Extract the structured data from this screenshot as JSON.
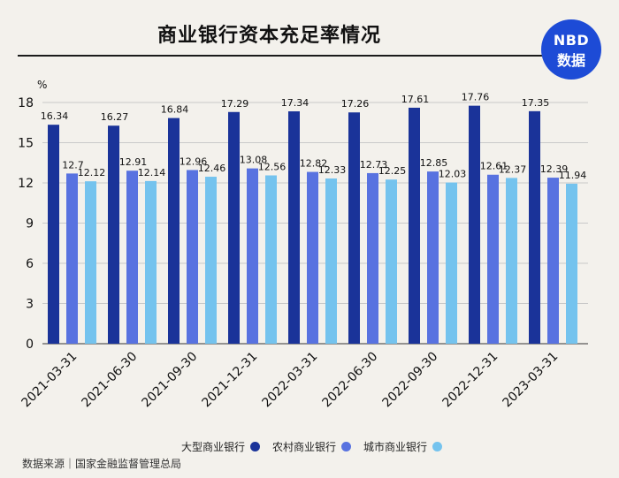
{
  "header": {
    "title": "商业银行资本充足率情况"
  },
  "logo": {
    "line1": "NBD",
    "line2": "数据"
  },
  "source": "数据来源｜国家金融监督管理总局",
  "chart_data": {
    "type": "bar",
    "title": "商业银行资本充足率情况",
    "unit_label": "%",
    "categories": [
      "2021-03-31",
      "2021-06-30",
      "2021-09-30",
      "2021-12-31",
      "2022-03-31",
      "2022-06-30",
      "2022-09-30",
      "2022-12-31",
      "2023-03-31"
    ],
    "series": [
      {
        "name": "大型商业银行",
        "color": "#1a3399",
        "values": [
          16.34,
          16.27,
          16.84,
          17.29,
          17.34,
          17.26,
          17.61,
          17.76,
          17.35
        ]
      },
      {
        "name": "农村商业银行",
        "color": "#5872e0",
        "values": [
          12.7,
          12.91,
          12.96,
          13.08,
          12.82,
          12.73,
          12.85,
          12.61,
          12.39
        ]
      },
      {
        "name": "城市商业银行",
        "color": "#74c3ee",
        "values": [
          12.12,
          12.14,
          12.46,
          12.56,
          12.33,
          12.25,
          12.03,
          12.37,
          11.94
        ]
      }
    ],
    "data_labels": [
      [
        "16.34",
        "16.27",
        "16.84",
        "17.29",
        "17.34",
        "17.26",
        "17.61",
        "17.76",
        "17.35"
      ],
      [
        "12.7",
        "12.91",
        "12.96",
        "13.08",
        "12.82",
        "12.73",
        "12.85",
        "12.61",
        "12.39"
      ],
      [
        "12.12",
        "12.14",
        "12.46",
        "12.56",
        "12.33",
        "12.25",
        "12.03",
        "12.37",
        "11.94"
      ]
    ],
    "ylim": [
      0,
      18
    ],
    "yticks": [
      0,
      3,
      6,
      9,
      12,
      15,
      18
    ],
    "grid": true,
    "legend_position": "bottom-right"
  }
}
